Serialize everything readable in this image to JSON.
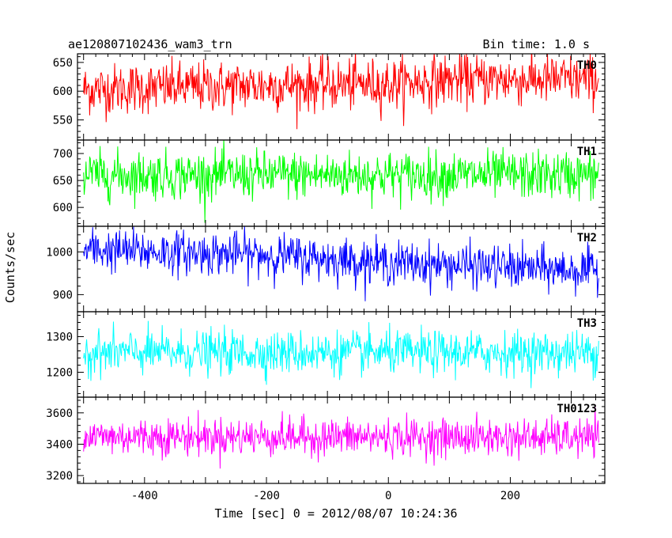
{
  "chart_data": {
    "type": "line",
    "title": "ae120807102436_wam3_trn",
    "bin_time": "Bin time: 1.0 s",
    "xlabel": "Time [sec] 0 = 2012/08/07 10:24:36",
    "ylabel": "Counts/sec",
    "x_range": [
      -510,
      355
    ],
    "data_x_start": -500,
    "data_x_end": 345,
    "x_ticks": [
      -400,
      -200,
      0,
      200
    ],
    "grid": false,
    "panels": [
      {
        "name": "TH0",
        "color": "#ff0000",
        "ylim": [
          515,
          665
        ],
        "y_ticks": [
          550,
          600,
          650
        ],
        "baseline": [
          [
            -500,
            603
          ],
          [
            -200,
            610
          ],
          [
            0,
            612
          ],
          [
            100,
            620
          ],
          [
            345,
            620
          ]
        ],
        "noise": 22
      },
      {
        "name": "TH1",
        "color": "#00ff00",
        "ylim": [
          565,
          725
        ],
        "y_ticks": [
          600,
          650,
          700
        ],
        "baseline": [
          [
            -500,
            660
          ],
          [
            345,
            660
          ]
        ],
        "noise": 22
      },
      {
        "name": "TH2",
        "color": "#0000ff",
        "ylim": [
          860,
          1060
        ],
        "y_ticks": [
          900,
          1000
        ],
        "baseline": [
          [
            -500,
            1005
          ],
          [
            -200,
            993
          ],
          [
            0,
            975
          ],
          [
            345,
            955
          ]
        ],
        "noise": 25
      },
      {
        "name": "TH3",
        "color": "#00ffff",
        "ylim": [
          1130,
          1370
        ],
        "y_ticks": [
          1200,
          1300
        ],
        "baseline": [
          [
            -500,
            1255
          ],
          [
            345,
            1255
          ]
        ],
        "noise": 30
      },
      {
        "name": "TH0123",
        "color": "#ff00ff",
        "ylim": [
          3150,
          3700
        ],
        "y_ticks": [
          3200,
          3400,
          3600
        ],
        "baseline": [
          [
            -500,
            3450
          ],
          [
            0,
            3445
          ],
          [
            345,
            3440
          ]
        ],
        "noise": 60
      }
    ]
  }
}
